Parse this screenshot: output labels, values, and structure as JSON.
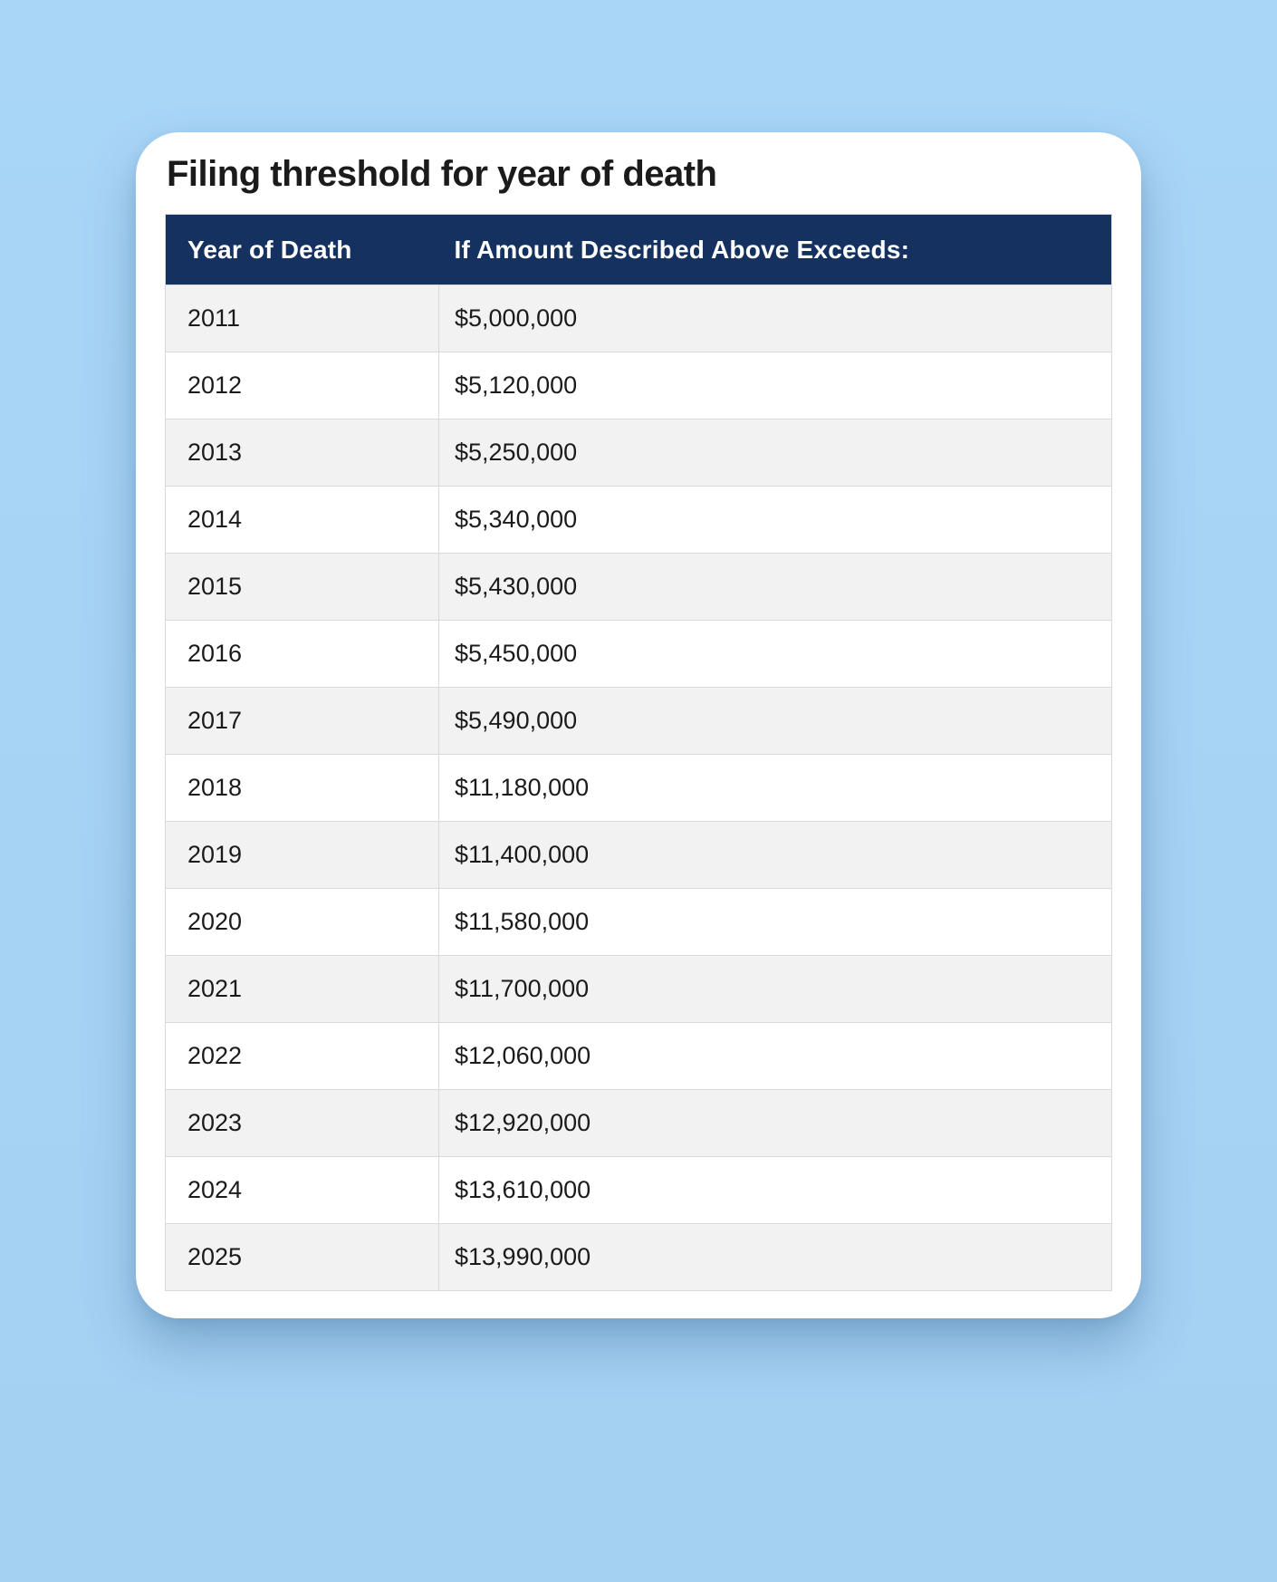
{
  "colors": {
    "page_background": "#a6d3f4",
    "card_background": "#ffffff",
    "header_background": "#14315f",
    "header_text": "#ffffff",
    "row_stripe": "#f2f2f2",
    "row_plain": "#ffffff",
    "border": "#d9d9d9",
    "text": "#1b1b1b"
  },
  "card": {
    "title": "Filing threshold for year of death"
  },
  "table": {
    "columns": [
      "Year of Death",
      "If Amount Described Above Exceeds:"
    ],
    "rows": [
      {
        "year": "2011",
        "amount": "$5,000,000"
      },
      {
        "year": "2012",
        "amount": "$5,120,000"
      },
      {
        "year": "2013",
        "amount": "$5,250,000"
      },
      {
        "year": "2014",
        "amount": "$5,340,000"
      },
      {
        "year": "2015",
        "amount": "$5,430,000"
      },
      {
        "year": "2016",
        "amount": "$5,450,000"
      },
      {
        "year": "2017",
        "amount": "$5,490,000"
      },
      {
        "year": "2018",
        "amount": "$11,180,000"
      },
      {
        "year": "2019",
        "amount": "$11,400,000"
      },
      {
        "year": "2020",
        "amount": "$11,580,000"
      },
      {
        "year": "2021",
        "amount": "$11,700,000"
      },
      {
        "year": "2022",
        "amount": "$12,060,000"
      },
      {
        "year": "2023",
        "amount": "$12,920,000"
      },
      {
        "year": "2024",
        "amount": "$13,610,000"
      },
      {
        "year": "2025",
        "amount": "$13,990,000"
      }
    ]
  }
}
